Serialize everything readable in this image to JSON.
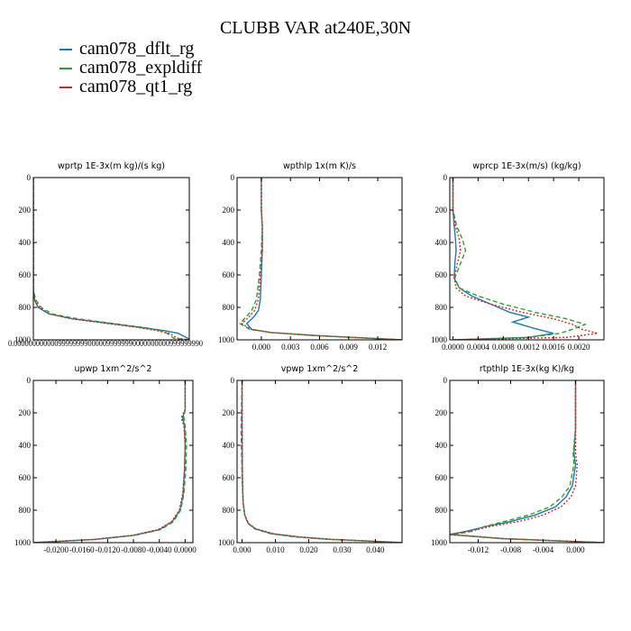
{
  "page": {
    "title": "CLUBB VAR at240E,30N"
  },
  "legend": [
    {
      "label": "cam078_dflt_rg",
      "color": "#1f77b4"
    },
    {
      "label": "cam078_expldiff",
      "color": "#2ca02c"
    },
    {
      "label": "cam078_qt1_rg",
      "color": "#d62728"
    }
  ],
  "chart_data": [
    {
      "type": "line",
      "title": "wprtp  1E-3x(m kg)/(s kg)",
      "xlim": [
        0,
        1e-06
      ],
      "ylim": [
        1000,
        0
      ],
      "x_ticks": [],
      "x_tick_text": "0.000000000000999999990000099999990000000000999999990",
      "y_ticks": [
        0,
        200,
        400,
        600,
        800,
        1000
      ],
      "y_tick_labels": [
        "0",
        "200",
        "400",
        "600",
        "800",
        "1000"
      ],
      "series": [
        {
          "color": "#1f77b4",
          "dash": "solid",
          "x": [
            0.0,
            0.0,
            0.0,
            1e-08,
            3e-08,
            1e-07,
            2.5e-07,
            5e-07,
            7e-07,
            8.5e-07,
            9.3e-07,
            9.5e-07,
            9.7e-07,
            9.9e-07,
            1e-06
          ],
          "y": [
            0,
            400,
            700,
            760,
            800,
            840,
            870,
            900,
            925,
            945,
            960,
            970,
            980,
            990,
            1000
          ]
        },
        {
          "color": "#2ca02c",
          "dash": "dashed",
          "x": [
            0.0,
            0.0,
            0.0,
            2e-08,
            5e-08,
            1.2e-07,
            2.8e-07,
            5.2e-07,
            7.2e-07,
            8.2e-07,
            8.6e-07,
            8.8e-07,
            9e-07,
            1e-06
          ],
          "y": [
            0,
            400,
            700,
            760,
            800,
            840,
            870,
            900,
            925,
            945,
            960,
            975,
            990,
            1000
          ]
        },
        {
          "color": "#d62728",
          "dash": "dotted",
          "x": [
            0.0,
            0.0,
            0.0,
            1e-08,
            4e-08,
            1e-07,
            2.4e-07,
            4.8e-07,
            6.8e-07,
            8e-07,
            8.7e-07,
            9e-07,
            9.2e-07,
            1e-06
          ],
          "y": [
            0,
            400,
            700,
            760,
            800,
            840,
            870,
            900,
            925,
            945,
            960,
            975,
            990,
            1000
          ]
        }
      ]
    },
    {
      "type": "line",
      "title": "wpthlp  1x(m K)/s",
      "xlim": [
        -0.0025,
        0.0145
      ],
      "ylim": [
        1000,
        0
      ],
      "x_ticks": [
        0.0,
        0.003,
        0.006,
        0.009,
        0.012
      ],
      "x_tick_labels": [
        "0.000",
        "0.003",
        "0.006",
        "0.009",
        "0.012"
      ],
      "y_ticks": [
        0,
        200,
        400,
        600,
        800,
        1000
      ],
      "y_tick_labels": [
        "0",
        "200",
        "400",
        "600",
        "800",
        "1000"
      ],
      "series": [
        {
          "color": "#1f77b4",
          "dash": "solid",
          "x": [
            0.0,
            0.0,
            0.0001,
            0.0001,
            0.0,
            -0.0001,
            -0.0003,
            -0.0008,
            -0.0015,
            -0.001,
            0.001,
            0.006,
            0.0145
          ],
          "y": [
            0,
            200,
            300,
            450,
            600,
            750,
            820,
            860,
            900,
            935,
            955,
            975,
            1000
          ]
        },
        {
          "color": "#2ca02c",
          "dash": "dashed",
          "x": [
            0.0,
            0.0,
            0.0001,
            0.0,
            -0.0002,
            -0.0005,
            -0.001,
            -0.0016,
            -0.0022,
            -0.0012,
            0.001,
            0.006,
            0.0145
          ],
          "y": [
            0,
            200,
            300,
            450,
            600,
            750,
            820,
            860,
            900,
            935,
            955,
            975,
            1000
          ]
        },
        {
          "color": "#d62728",
          "dash": "dotted",
          "x": [
            0.0,
            0.0,
            0.0001,
            0.0001,
            -0.0001,
            -0.0003,
            -0.0007,
            -0.0013,
            -0.002,
            -0.0011,
            0.001,
            0.006,
            0.0145
          ],
          "y": [
            0,
            200,
            300,
            450,
            600,
            750,
            820,
            860,
            900,
            935,
            955,
            975,
            1000
          ]
        }
      ]
    },
    {
      "type": "line",
      "title": "wprcp  1E-3x(m/s) (kg/kg)",
      "xlim": [
        -5e-05,
        0.0024
      ],
      "ylim": [
        1000,
        0
      ],
      "x_ticks": [
        0.0,
        0.0004,
        0.0008,
        0.0012,
        0.0016,
        0.002
      ],
      "x_tick_labels": [
        "0.0000",
        "0.0004",
        "0.0008",
        "0.0012",
        "0.0016",
        "0.0020"
      ],
      "y_ticks": [
        0,
        200,
        400,
        600,
        800,
        1000
      ],
      "y_tick_labels": [
        "0",
        "200",
        "400",
        "600",
        "800",
        "1000"
      ],
      "series": [
        {
          "color": "#1f77b4",
          "dash": "solid",
          "x": [
            0.0,
            0.0,
            2e-05,
            4e-05,
            5e-05,
            3e-05,
            2e-05,
            0.0001,
            0.0003,
            0.0006,
            0.0009,
            0.0012,
            0.00095,
            0.0013,
            0.0016,
            0.0012,
            0.0
          ],
          "y": [
            0,
            200,
            300,
            380,
            450,
            530,
            620,
            680,
            730,
            780,
            830,
            860,
            890,
            930,
            960,
            985,
            1000
          ]
        },
        {
          "color": "#2ca02c",
          "dash": "dashed",
          "x": [
            0.0,
            0.0,
            6e-05,
            0.00015,
            0.0002,
            0.00012,
            3e-05,
            0.0001,
            0.0004,
            0.0008,
            0.0013,
            0.0018,
            0.0021,
            0.0019,
            0.0017,
            0.0012,
            0.0
          ],
          "y": [
            0,
            200,
            300,
            380,
            450,
            530,
            620,
            680,
            730,
            780,
            830,
            870,
            905,
            935,
            960,
            985,
            1000
          ]
        },
        {
          "color": "#d62728",
          "dash": "dotted",
          "x": [
            0.0,
            0.0,
            4e-05,
            0.0001,
            0.00012,
            7e-05,
            2e-05,
            5e-05,
            0.0002,
            0.0006,
            0.0011,
            0.0016,
            0.0019,
            0.00205,
            0.0023,
            0.0018,
            0.0
          ],
          "y": [
            0,
            200,
            300,
            380,
            450,
            530,
            620,
            680,
            730,
            780,
            830,
            870,
            905,
            935,
            960,
            985,
            1000
          ]
        }
      ]
    },
    {
      "type": "line",
      "title": "upwp  1xm^2/s^2",
      "xlim": [
        -0.0235,
        0.0012
      ],
      "ylim": [
        1000,
        0
      ],
      "x_ticks": [
        -0.02,
        -0.016,
        -0.012,
        -0.008,
        -0.004,
        0.0
      ],
      "x_tick_labels": [
        "-0.0200",
        "-0.0160",
        "-0.0120",
        "-0.0080",
        "-0.0040",
        "0.0000"
      ],
      "y_ticks": [
        0,
        200,
        400,
        600,
        800,
        1000
      ],
      "y_tick_labels": [
        "0",
        "200",
        "400",
        "600",
        "800",
        "1000"
      ],
      "series": [
        {
          "color": "#1f77b4",
          "dash": "solid",
          "x": [
            0.0,
            0.0,
            -0.0004,
            -0.0001,
            0.0,
            -0.0001,
            -0.0003,
            -0.0008,
            -0.002,
            -0.004,
            -0.008,
            -0.014,
            -0.0235
          ],
          "y": [
            0,
            180,
            230,
            280,
            400,
            550,
            700,
            800,
            870,
            920,
            955,
            980,
            1000
          ]
        },
        {
          "color": "#2ca02c",
          "dash": "dashed",
          "x": [
            0.0,
            0.0,
            -0.0002,
            0.0,
            0.0002,
            0.0001,
            -0.0002,
            -0.0007,
            -0.0018,
            -0.0038,
            -0.0078,
            -0.0138,
            -0.0235
          ],
          "y": [
            0,
            180,
            230,
            280,
            400,
            550,
            700,
            800,
            870,
            920,
            955,
            980,
            1000
          ]
        },
        {
          "color": "#d62728",
          "dash": "dotted",
          "x": [
            0.0,
            0.0,
            -0.0006,
            -0.0002,
            0.0,
            -0.0001,
            -0.0004,
            -0.0009,
            -0.0021,
            -0.0042,
            -0.0082,
            -0.0142,
            -0.0235
          ],
          "y": [
            0,
            180,
            230,
            280,
            400,
            550,
            700,
            800,
            870,
            920,
            955,
            980,
            1000
          ]
        }
      ]
    },
    {
      "type": "line",
      "title": "vpwp  1xm^2/s^2",
      "xlim": [
        -0.0015,
        0.048
      ],
      "ylim": [
        1000,
        0
      ],
      "x_ticks": [
        0.0,
        0.01,
        0.02,
        0.03,
        0.04
      ],
      "x_tick_labels": [
        "0.000",
        "0.010",
        "0.020",
        "0.030",
        "0.040"
      ],
      "y_ticks": [
        0,
        200,
        400,
        600,
        800,
        1000
      ],
      "y_tick_labels": [
        "0",
        "200",
        "400",
        "600",
        "800",
        "1000"
      ],
      "series": [
        {
          "color": "#1f77b4",
          "dash": "solid",
          "x": [
            0.0,
            0.0,
            0.0001,
            0.0003,
            0.0008,
            0.0018,
            0.004,
            0.009,
            0.017,
            0.027,
            0.038,
            0.048
          ],
          "y": [
            0,
            300,
            600,
            750,
            830,
            880,
            915,
            945,
            965,
            980,
            990,
            1000
          ]
        },
        {
          "color": "#2ca02c",
          "dash": "dashed",
          "x": [
            0.0,
            -0.0003,
            0.0,
            0.0003,
            0.0008,
            0.0017,
            0.0038,
            0.0085,
            0.016,
            0.026,
            0.037,
            0.048
          ],
          "y": [
            0,
            300,
            600,
            750,
            830,
            880,
            915,
            945,
            965,
            980,
            990,
            1000
          ]
        },
        {
          "color": "#d62728",
          "dash": "dotted",
          "x": [
            0.0,
            0.0,
            0.0001,
            0.0003,
            0.0008,
            0.0019,
            0.0042,
            0.0095,
            0.0175,
            0.0275,
            0.0385,
            0.048
          ],
          "y": [
            0,
            300,
            600,
            750,
            830,
            880,
            915,
            945,
            965,
            980,
            990,
            1000
          ]
        }
      ]
    },
    {
      "type": "line",
      "title": "rtpthlp  1E-3x(kg K)/kg",
      "xlim": [
        -0.0155,
        0.0035
      ],
      "ylim": [
        1000,
        0
      ],
      "x_ticks": [
        -0.012,
        -0.008,
        -0.004,
        0.0
      ],
      "x_tick_labels": [
        "-0.012",
        "-0.008",
        "-0.004",
        "0.000"
      ],
      "y_ticks": [
        0,
        200,
        400,
        600,
        800,
        1000
      ],
      "y_tick_labels": [
        "0",
        "200",
        "400",
        "600",
        "800",
        "1000"
      ],
      "series": [
        {
          "color": "#1f77b4",
          "dash": "solid",
          "x": [
            0.0,
            0.0,
            -0.0002,
            0.0,
            -0.0004,
            -0.0012,
            -0.0025,
            -0.005,
            -0.008,
            -0.011,
            -0.0135,
            -0.0155,
            -0.009,
            0.0035
          ],
          "y": [
            0,
            300,
            450,
            520,
            650,
            720,
            780,
            830,
            870,
            900,
            930,
            950,
            975,
            1000
          ]
        },
        {
          "color": "#2ca02c",
          "dash": "dashed",
          "x": [
            0.0,
            0.0,
            -0.0003,
            -0.0002,
            -0.0007,
            -0.0017,
            -0.0032,
            -0.0058,
            -0.0088,
            -0.0112,
            -0.0128,
            -0.015,
            -0.009,
            0.0035
          ],
          "y": [
            0,
            300,
            450,
            520,
            650,
            720,
            780,
            830,
            870,
            900,
            930,
            950,
            975,
            1000
          ]
        },
        {
          "color": "#d62728",
          "dash": "dotted",
          "x": [
            0.0,
            0.0,
            0.0,
            0.0002,
            0.0,
            -0.0006,
            -0.0018,
            -0.004,
            -0.007,
            -0.0105,
            -0.013,
            -0.0158,
            -0.009,
            0.0035
          ],
          "y": [
            0,
            300,
            450,
            520,
            650,
            720,
            780,
            830,
            870,
            900,
            930,
            950,
            975,
            1000
          ]
        }
      ]
    }
  ]
}
